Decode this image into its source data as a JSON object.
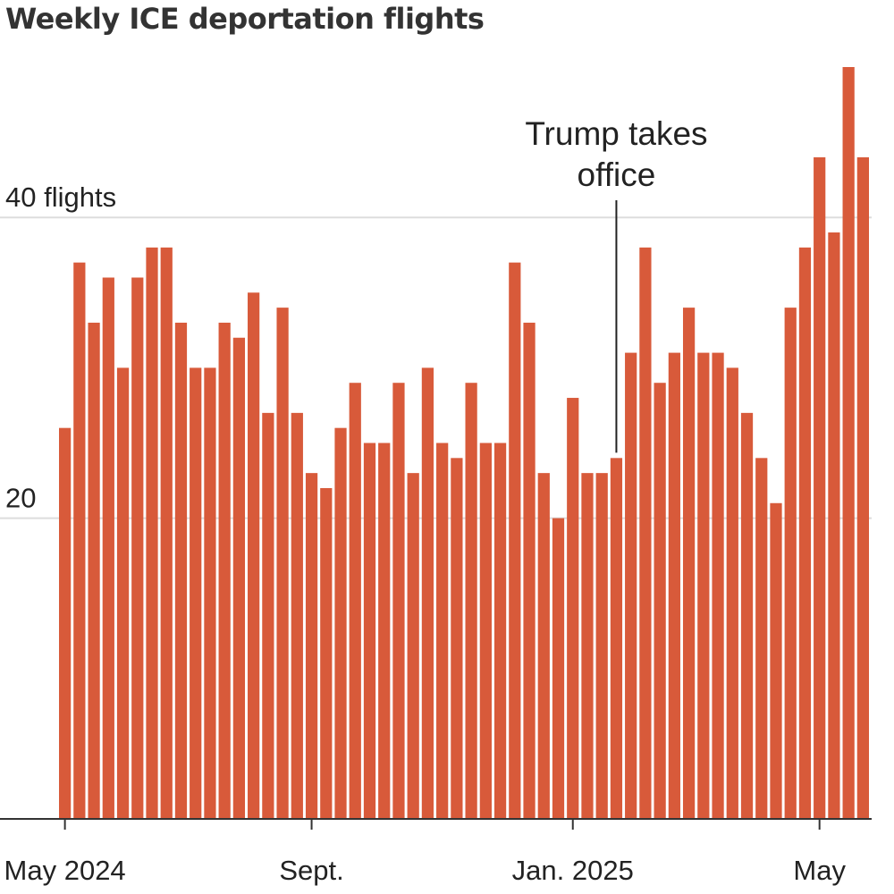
{
  "chart_data": {
    "type": "bar",
    "title": "Weekly ICE deportation flights",
    "xlabel": "",
    "ylabel": "",
    "ylim": [
      0,
      50
    ],
    "y_ticks": [
      {
        "value": 20,
        "label": "20"
      },
      {
        "value": 40,
        "label": "40 flights"
      }
    ],
    "x_ticks": [
      {
        "bar_index": 0,
        "label": "May 2024"
      },
      {
        "bar_index": 17,
        "label": "Sept."
      },
      {
        "bar_index": 35,
        "label": "Jan. 2025"
      },
      {
        "bar_index": 52,
        "label": "May"
      }
    ],
    "series": [
      {
        "name": "Weekly ICE deportation flights",
        "values": [
          26,
          37,
          33,
          36,
          30,
          36,
          38,
          38,
          33,
          30,
          30,
          33,
          32,
          35,
          27,
          34,
          27,
          23,
          22,
          26,
          29,
          25,
          25,
          29,
          23,
          30,
          25,
          24,
          29,
          25,
          25,
          37,
          33,
          23,
          20,
          28,
          23,
          23,
          24,
          31,
          38,
          29,
          31,
          34,
          31,
          31,
          30,
          27,
          24,
          21,
          34,
          38,
          44,
          39,
          50,
          44
        ]
      }
    ],
    "annotations": [
      {
        "bar_index": 38,
        "lines": [
          "Trump takes",
          "office"
        ]
      }
    ]
  }
}
